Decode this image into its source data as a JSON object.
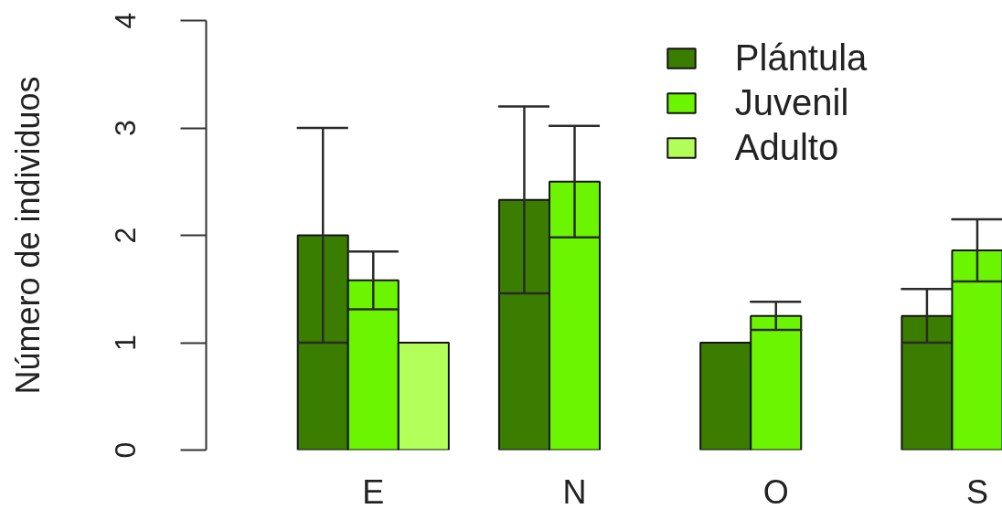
{
  "chart_data": {
    "type": "bar",
    "ylabel": "Número de individuos",
    "categories": [
      "E",
      "N",
      "O",
      "S"
    ],
    "series": [
      {
        "name": "Plántula",
        "color": "#3a7d00",
        "values": [
          2.0,
          2.33,
          1.0,
          1.25
        ],
        "errors": [
          1.0,
          0.87,
          null,
          0.25
        ]
      },
      {
        "name": "Juvenil",
        "color": "#6cf500",
        "values": [
          1.58,
          2.5,
          1.25,
          1.86
        ],
        "errors": [
          0.27,
          0.52,
          0.13,
          0.29
        ]
      },
      {
        "name": "Adulto",
        "color": "#b2ff59",
        "values": [
          1.0,
          null,
          null,
          null
        ],
        "errors": [
          null,
          null,
          null,
          null
        ]
      }
    ],
    "ylim": [
      0,
      4
    ],
    "yticks": [
      0,
      1,
      2,
      3,
      4
    ],
    "legend": "top right"
  }
}
